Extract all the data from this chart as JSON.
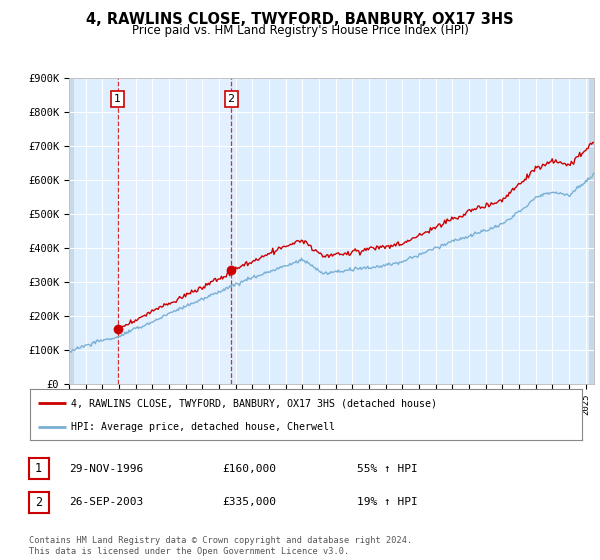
{
  "title": "4, RAWLINS CLOSE, TWYFORD, BANBURY, OX17 3HS",
  "subtitle": "Price paid vs. HM Land Registry's House Price Index (HPI)",
  "ylim": [
    0,
    900000
  ],
  "yticks": [
    0,
    100000,
    200000,
    300000,
    400000,
    500000,
    600000,
    700000,
    800000,
    900000
  ],
  "ytick_labels": [
    "£0",
    "£100K",
    "£200K",
    "£300K",
    "£400K",
    "£500K",
    "£600K",
    "£700K",
    "£800K",
    "£900K"
  ],
  "background_color": "#ffffff",
  "plot_bg_color": "#ddeeff",
  "grid_color": "#ffffff",
  "hpi_line_color": "#7ab0d4",
  "price_line_color": "#cc0000",
  "sale1_x": 1996.91,
  "sale1_y": 160000,
  "sale2_x": 2003.73,
  "sale2_y": 335000,
  "legend_entry1": "4, RAWLINS CLOSE, TWYFORD, BANBURY, OX17 3HS (detached house)",
  "legend_entry2": "HPI: Average price, detached house, Cherwell",
  "table_rows": [
    {
      "num": "1",
      "date": "29-NOV-1996",
      "price": "£160,000",
      "hpi": "55% ↑ HPI"
    },
    {
      "num": "2",
      "date": "26-SEP-2003",
      "price": "£335,000",
      "hpi": "19% ↑ HPI"
    }
  ],
  "footer": "Contains HM Land Registry data © Crown copyright and database right 2024.\nThis data is licensed under the Open Government Licence v3.0.",
  "xmin": 1994,
  "xmax": 2025.5,
  "monospace_font": "DejaVu Sans Mono"
}
